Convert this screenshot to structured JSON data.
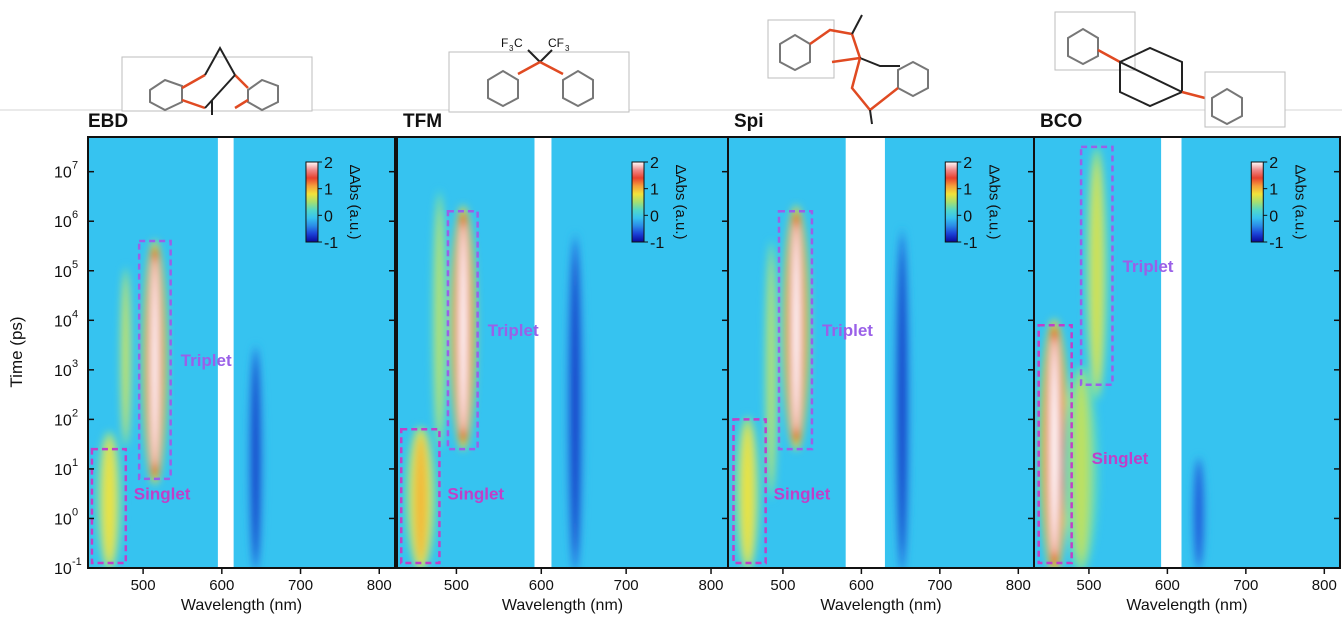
{
  "figure": {
    "ylabel": "Time (ps)",
    "y_ticks": [
      "10",
      "10",
      "10",
      "10",
      "10",
      "10",
      "10",
      "10",
      "10"
    ],
    "y_tick_exps": [
      "7",
      "6",
      "5",
      "4",
      "3",
      "2",
      "1",
      "0",
      "-1"
    ],
    "colorbar_label": "ΔAbs (a.u.)",
    "colorbar_ticks": [
      "2",
      "1",
      "0",
      "-1"
    ],
    "colormap": [
      "#08089a",
      "#1a3fd6",
      "#2a8ae8",
      "#36c3f0",
      "#52d8c8",
      "#a6e070",
      "#f2e23a",
      "#f5a03a",
      "#e8412e",
      "#f08a8a",
      "#ffffff"
    ],
    "background_color": "#36c3f0",
    "box_colors": {
      "singlet": "#c040c8",
      "triplet": "#9a60e8"
    },
    "label_colors": {
      "singlet": "#c040c8",
      "triplet": "#9a60e8"
    }
  },
  "chart_data": [
    {
      "type": "heatmap",
      "title": "EBD",
      "xlabel": "Wavelength (nm)",
      "ylabel": "Time (ps)",
      "x_ticks": [
        "500",
        "600",
        "700",
        "800"
      ],
      "xlim": [
        430,
        820
      ],
      "ylim_log10": [
        -1,
        7.7
      ],
      "y_scale": "log",
      "y_ticks_log10": [
        -1,
        0,
        1,
        2,
        3,
        4,
        5,
        6,
        7
      ],
      "colorbar_range": [
        -1,
        2
      ],
      "masked_wavelength_range": [
        595,
        615
      ],
      "singlet_box": {
        "wavelength": [
          435,
          478
        ],
        "log_time": [
          -0.9,
          1.4
        ]
      },
      "triplet_box": {
        "wavelength": [
          495,
          535
        ],
        "log_time": [
          0.8,
          5.6
        ]
      },
      "annotations": [
        "Triplet",
        "Singlet"
      ],
      "bands": [
        {
          "center_nm": 457,
          "width_nm": 22,
          "log_time": [
            -1,
            1.7
          ],
          "amplitude": 0.8
        },
        {
          "center_nm": 515,
          "width_nm": 20,
          "log_time": [
            0.8,
            5.5
          ],
          "amplitude": 2
        },
        {
          "center_nm": 478,
          "width_nm": 10,
          "log_time": [
            1.5,
            5.0
          ],
          "amplitude": 0.7
        },
        {
          "center_nm": 643,
          "width_nm": 13,
          "log_time": [
            -1,
            3.4
          ],
          "amplitude": -0.8
        }
      ]
    },
    {
      "type": "heatmap",
      "title": "TFM",
      "xlabel": "Wavelength (nm)",
      "x_ticks": [
        "500",
        "600",
        "700",
        "800"
      ],
      "xlim": [
        430,
        820
      ],
      "ylim_log10": [
        -1,
        7.7
      ],
      "y_scale": "log",
      "colorbar_range": [
        -1,
        2
      ],
      "masked_wavelength_range": [
        592,
        612
      ],
      "singlet_box": {
        "wavelength": [
          435,
          480
        ],
        "log_time": [
          -0.9,
          1.8
        ]
      },
      "triplet_box": {
        "wavelength": [
          490,
          525
        ],
        "log_time": [
          1.4,
          6.2
        ]
      },
      "annotations": [
        "Triplet",
        "Singlet"
      ],
      "bands": [
        {
          "center_nm": 458,
          "width_nm": 24,
          "log_time": [
            -1,
            1.8
          ],
          "amplitude": 1
        },
        {
          "center_nm": 508,
          "width_nm": 20,
          "log_time": [
            1.5,
            6.2
          ],
          "amplitude": 2
        },
        {
          "center_nm": 480,
          "width_nm": 12,
          "log_time": [
            1.5,
            6.5
          ],
          "amplitude": 0.6
        },
        {
          "center_nm": 640,
          "width_nm": 14,
          "log_time": [
            -1,
            5.6
          ],
          "amplitude": -0.8
        }
      ]
    },
    {
      "type": "heatmap",
      "title": "Spi",
      "xlabel": "Wavelength (nm)",
      "x_ticks": [
        "500",
        "600",
        "700",
        "800"
      ],
      "xlim": [
        430,
        820
      ],
      "ylim_log10": [
        -1,
        7.7
      ],
      "y_scale": "log",
      "colorbar_range": [
        -1,
        2
      ],
      "masked_wavelength_range": [
        580,
        630
      ],
      "singlet_box": {
        "wavelength": [
          437,
          478
        ],
        "log_time": [
          -0.9,
          2.0
        ]
      },
      "triplet_box": {
        "wavelength": [
          495,
          537
        ],
        "log_time": [
          1.4,
          6.2
        ]
      },
      "annotations": [
        "Triplet",
        "Singlet"
      ],
      "bands": [
        {
          "center_nm": 455,
          "width_nm": 22,
          "log_time": [
            -1,
            2.0
          ],
          "amplitude": 0.8
        },
        {
          "center_nm": 517,
          "width_nm": 22,
          "log_time": [
            1.5,
            6.2
          ],
          "amplitude": 2
        },
        {
          "center_nm": 485,
          "width_nm": 12,
          "log_time": [
            0.5,
            5.5
          ],
          "amplitude": 0.6
        },
        {
          "center_nm": 652,
          "width_nm": 14,
          "log_time": [
            -1,
            5.7
          ],
          "amplitude": -0.8
        }
      ]
    },
    {
      "type": "heatmap",
      "title": "BCO",
      "xlabel": "Wavelength (nm)",
      "x_ticks": [
        "500",
        "600",
        "700",
        "800"
      ],
      "xlim": [
        430,
        820
      ],
      "ylim_log10": [
        -1,
        7.7
      ],
      "y_scale": "log",
      "colorbar_range": [
        -1,
        2
      ],
      "masked_wavelength_range": [
        592,
        618
      ],
      "singlet_box": {
        "wavelength": [
          436,
          478
        ],
        "log_time": [
          -0.9,
          3.9
        ]
      },
      "triplet_box": {
        "wavelength": [
          490,
          530
        ],
        "log_time": [
          2.7,
          7.5
        ]
      },
      "annotations": [
        "Triplet",
        "Singlet"
      ],
      "bands": [
        {
          "center_nm": 456,
          "width_nm": 24,
          "log_time": [
            -1,
            3.9
          ],
          "amplitude": 2
        },
        {
          "center_nm": 510,
          "width_nm": 20,
          "log_time": [
            2.5,
            7.4
          ],
          "amplitude": 0.7
        },
        {
          "center_nm": 490,
          "width_nm": 30,
          "log_time": [
            -1,
            3.0
          ],
          "amplitude": 0.6
        },
        {
          "center_nm": 640,
          "width_nm": 12,
          "log_time": [
            -1,
            1.2
          ],
          "amplitude": -0.7
        }
      ]
    }
  ]
}
